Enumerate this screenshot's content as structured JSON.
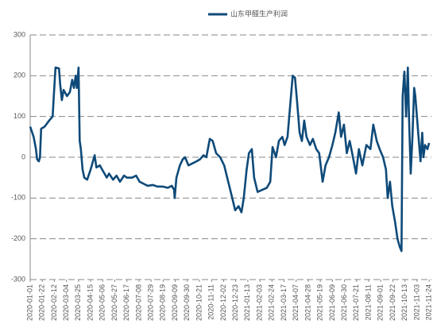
{
  "chart_data": {
    "type": "line",
    "series": [
      {
        "name": "山东甲醛生产利润",
        "color": "#0e4a79",
        "x": [
          "2020-01-01",
          "2020-01-07",
          "2020-01-11",
          "2020-01-13",
          "2020-01-16",
          "2020-01-18",
          "2020-01-20",
          "2020-01-26",
          "2020-02-03",
          "2020-02-09",
          "2020-02-11",
          "2020-02-14",
          "2020-02-20",
          "2020-02-22",
          "2020-02-25",
          "2020-02-28",
          "2020-03-05",
          "2020-03-10",
          "2020-03-14",
          "2020-03-17",
          "2020-03-20",
          "2020-03-22",
          "2020-03-25",
          "2020-03-27",
          "2020-03-29",
          "2020-04-01",
          "2020-04-04",
          "2020-04-09",
          "2020-04-15",
          "2020-04-19",
          "2020-04-22",
          "2020-04-25",
          "2020-05-01",
          "2020-05-07",
          "2020-05-13",
          "2020-05-17",
          "2020-05-24",
          "2020-05-30",
          "2020-06-05",
          "2020-06-12",
          "2020-06-17",
          "2020-06-26",
          "2020-07-03",
          "2020-07-09",
          "2020-07-16",
          "2020-07-23",
          "2020-08-01",
          "2020-08-09",
          "2020-08-19",
          "2020-08-27",
          "2020-09-03",
          "2020-09-07",
          "2020-09-08",
          "2020-09-11",
          "2020-09-17",
          "2020-09-22",
          "2020-09-26",
          "2020-10-02",
          "2020-10-09",
          "2020-10-16",
          "2020-10-22",
          "2020-10-28",
          "2020-11-02",
          "2020-11-08",
          "2020-11-13",
          "2020-11-19",
          "2020-11-26",
          "2020-12-03",
          "2020-12-10",
          "2020-12-17",
          "2020-12-22",
          "2020-12-28",
          "2021-01-02",
          "2021-01-06",
          "2021-01-11",
          "2021-01-15",
          "2021-01-20",
          "2021-01-24",
          "2021-01-30",
          "2021-02-07",
          "2021-02-15",
          "2021-02-21",
          "2021-02-25",
          "2021-03-03",
          "2021-03-08",
          "2021-03-14",
          "2021-03-18",
          "2021-03-23",
          "2021-03-29",
          "2021-04-01",
          "2021-04-05",
          "2021-04-09",
          "2021-04-13",
          "2021-04-17",
          "2021-04-21",
          "2021-04-25",
          "2021-05-01",
          "2021-05-06",
          "2021-05-12",
          "2021-05-17",
          "2021-05-23",
          "2021-05-28",
          "2021-06-03",
          "2021-06-09",
          "2021-06-14",
          "2021-06-20",
          "2021-06-24",
          "2021-06-29",
          "2021-07-04",
          "2021-07-09",
          "2021-07-14",
          "2021-07-20",
          "2021-07-25",
          "2021-07-31",
          "2021-08-07",
          "2021-08-14",
          "2021-08-19",
          "2021-08-25",
          "2021-08-30",
          "2021-09-05",
          "2021-09-10",
          "2021-09-13",
          "2021-09-17",
          "2021-09-21",
          "2021-09-26",
          "2021-09-30",
          "2021-10-04",
          "2021-10-07",
          "2021-10-09",
          "2021-10-12",
          "2021-10-15",
          "2021-10-18",
          "2021-10-20",
          "2021-10-23",
          "2021-10-26",
          "2021-10-29",
          "2021-10-31",
          "2021-11-05",
          "2021-11-09",
          "2021-11-12",
          "2021-11-14",
          "2021-11-17",
          "2021-11-21",
          "2021-11-24"
        ],
        "values": [
          75,
          50,
          20,
          -5,
          -10,
          0,
          70,
          75,
          90,
          100,
          150,
          220,
          218,
          180,
          140,
          165,
          150,
          160,
          190,
          170,
          200,
          170,
          220,
          40,
          20,
          -30,
          -50,
          -55,
          -30,
          -10,
          5,
          -25,
          -20,
          -35,
          -50,
          -40,
          -55,
          -45,
          -60,
          -45,
          -50,
          -50,
          -45,
          -60,
          -65,
          -70,
          -68,
          -72,
          -72,
          -75,
          -70,
          -80,
          -100,
          -50,
          -20,
          -5,
          0,
          -20,
          -15,
          -10,
          -5,
          5,
          0,
          45,
          40,
          10,
          0,
          -20,
          -60,
          -100,
          -130,
          -120,
          -135,
          -100,
          -30,
          10,
          20,
          -50,
          -85,
          -80,
          -75,
          -60,
          25,
          0,
          40,
          50,
          30,
          50,
          150,
          200,
          195,
          130,
          60,
          40,
          90,
          50,
          30,
          45,
          20,
          10,
          -60,
          -20,
          0,
          30,
          60,
          110,
          50,
          80,
          10,
          40,
          5,
          -40,
          20,
          -20,
          30,
          20,
          80,
          40,
          20,
          0,
          -30,
          -100,
          -60,
          -120,
          -160,
          -200,
          -220,
          -230,
          150,
          210,
          100,
          220,
          100,
          -40,
          50,
          170,
          150,
          60,
          -10,
          60,
          0,
          30,
          20,
          35
        ]
      }
    ],
    "xlim": [
      "2020-01-01",
      "2021-11-28"
    ],
    "xticks": [
      "2020-01-01",
      "2020-01-22",
      "2020-02-12",
      "2020-03-04",
      "2020-03-25",
      "2020-04-15",
      "2020-05-06",
      "2020-05-27",
      "2020-06-17",
      "2020-07-08",
      "2020-07-29",
      "2020-08-19",
      "2020-09-09",
      "2020-09-30",
      "2020-10-21",
      "2020-11-11",
      "2020-12-02",
      "2020-12-23",
      "2021-01-13",
      "2021-02-03",
      "2021-02-24",
      "2021-03-17",
      "2021-04-07",
      "2021-04-28",
      "2021-05-19",
      "2021-06-09",
      "2021-06-30",
      "2021-07-21",
      "2021-08-11",
      "2021-09-01",
      "2021-09-22",
      "2021-10-13",
      "2021-11-03",
      "2021-11-24"
    ],
    "ylim": [
      -300,
      300
    ],
    "yticks": [
      300,
      200,
      100,
      0,
      -100,
      -200,
      -300
    ],
    "grid": true,
    "legend": "top"
  }
}
